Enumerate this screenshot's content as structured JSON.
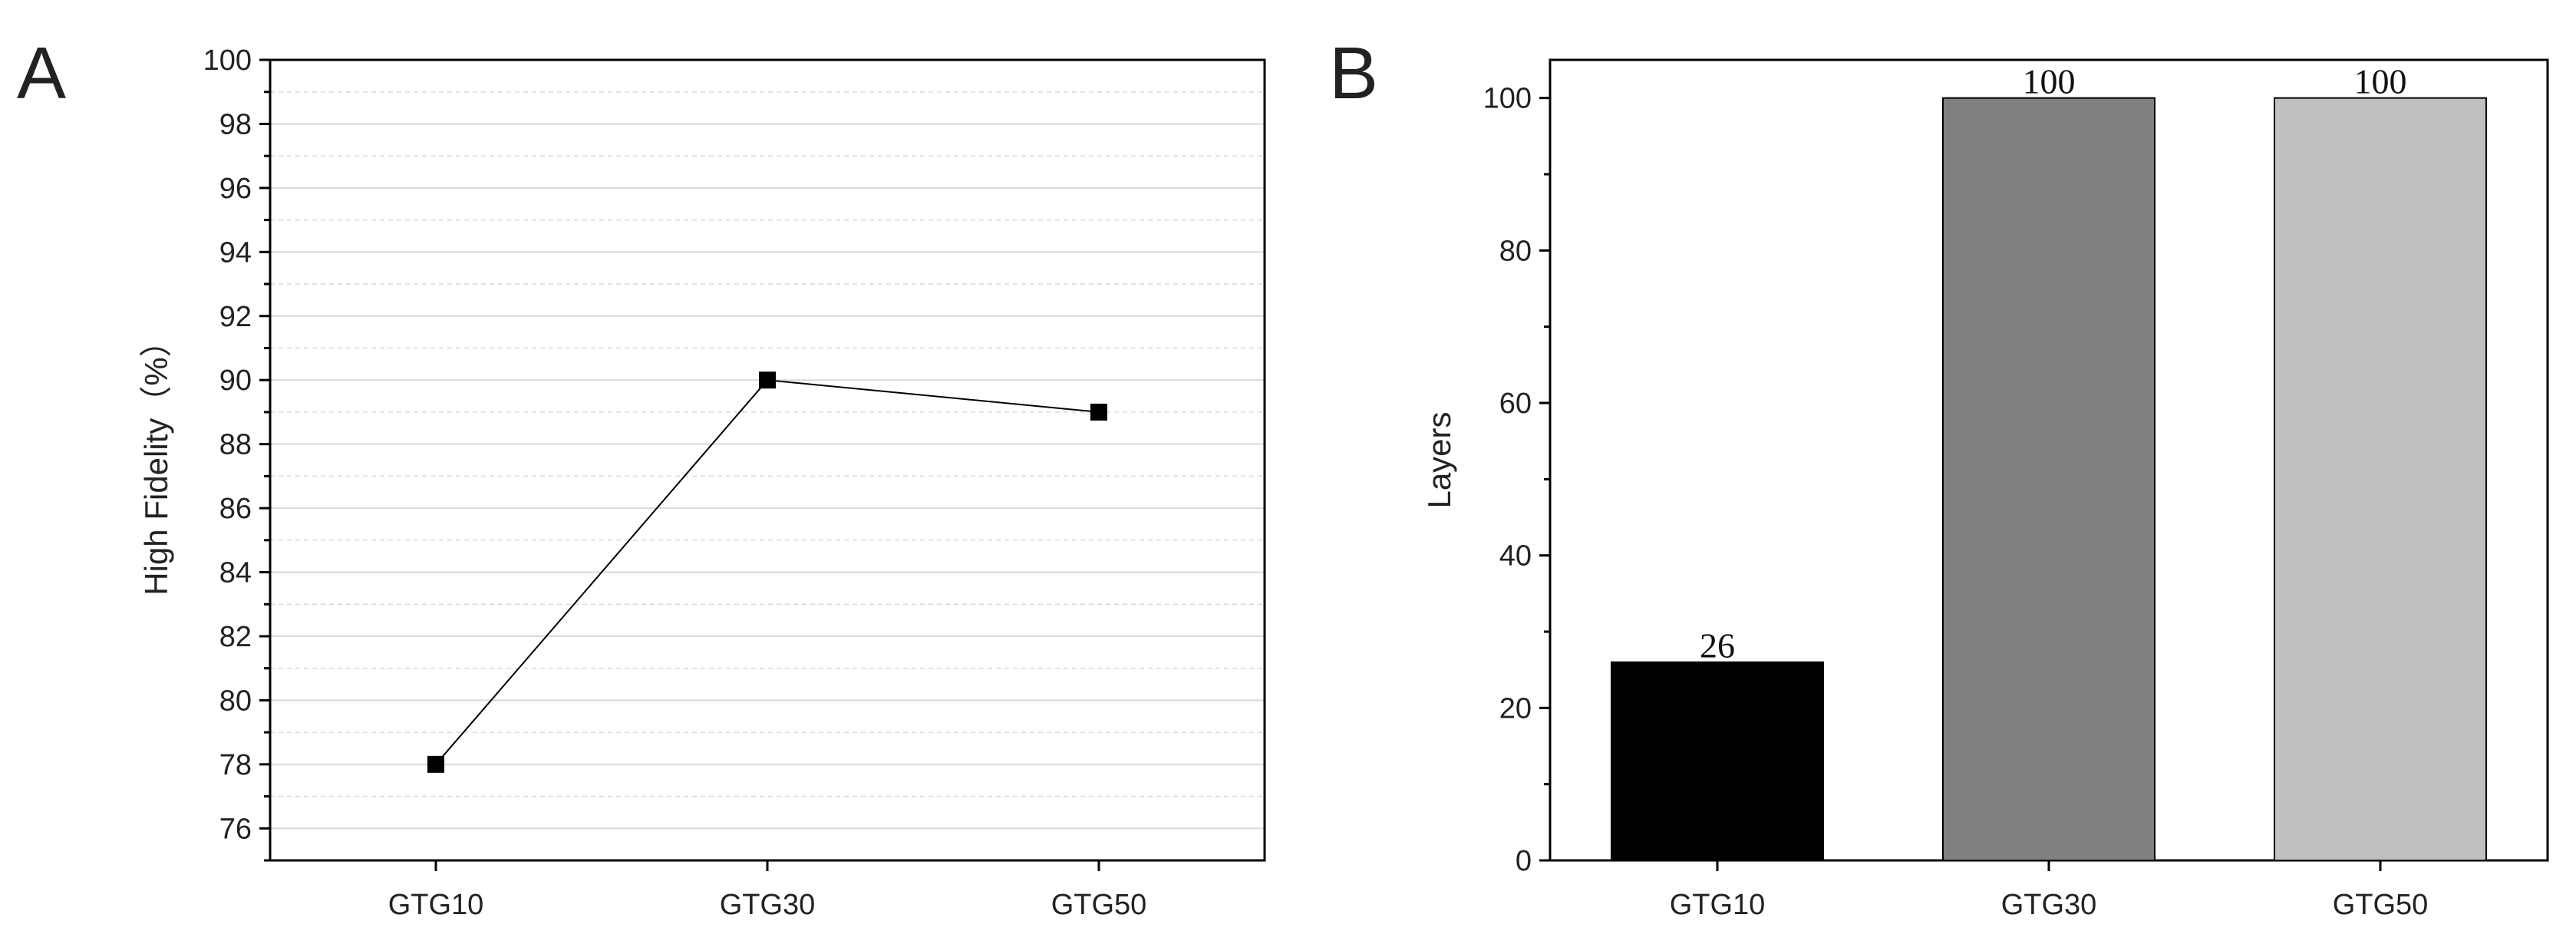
{
  "chart_data": [
    {
      "panel": "A",
      "type": "line",
      "categories": [
        "GTG10",
        "GTG30",
        "GTG50"
      ],
      "series": [
        {
          "values": [
            78,
            90,
            89
          ]
        }
      ],
      "xlabel": "",
      "ylabel": "High Fidelity（%）",
      "ylim": [
        75,
        100
      ],
      "yticks": [
        76,
        78,
        80,
        82,
        84,
        86,
        88,
        90,
        92,
        94,
        96,
        98,
        100
      ],
      "grid": true,
      "marker": "square",
      "colors": {
        "line": "#000000",
        "marker": "#000000",
        "grid": "#d9d9d9"
      }
    },
    {
      "panel": "B",
      "type": "bar",
      "categories": [
        "GTG10",
        "GTG30",
        "GTG50"
      ],
      "values": [
        26,
        100,
        100
      ],
      "data_labels": [
        "26",
        "100",
        "100"
      ],
      "xlabel": "",
      "ylabel": "Layers",
      "ylim": [
        0,
        105
      ],
      "yticks": [
        0,
        20,
        40,
        60,
        80,
        100
      ],
      "grid": false,
      "colors": {
        "bars": [
          "#000000",
          "#808080",
          "#c0c0c0"
        ]
      }
    }
  ]
}
